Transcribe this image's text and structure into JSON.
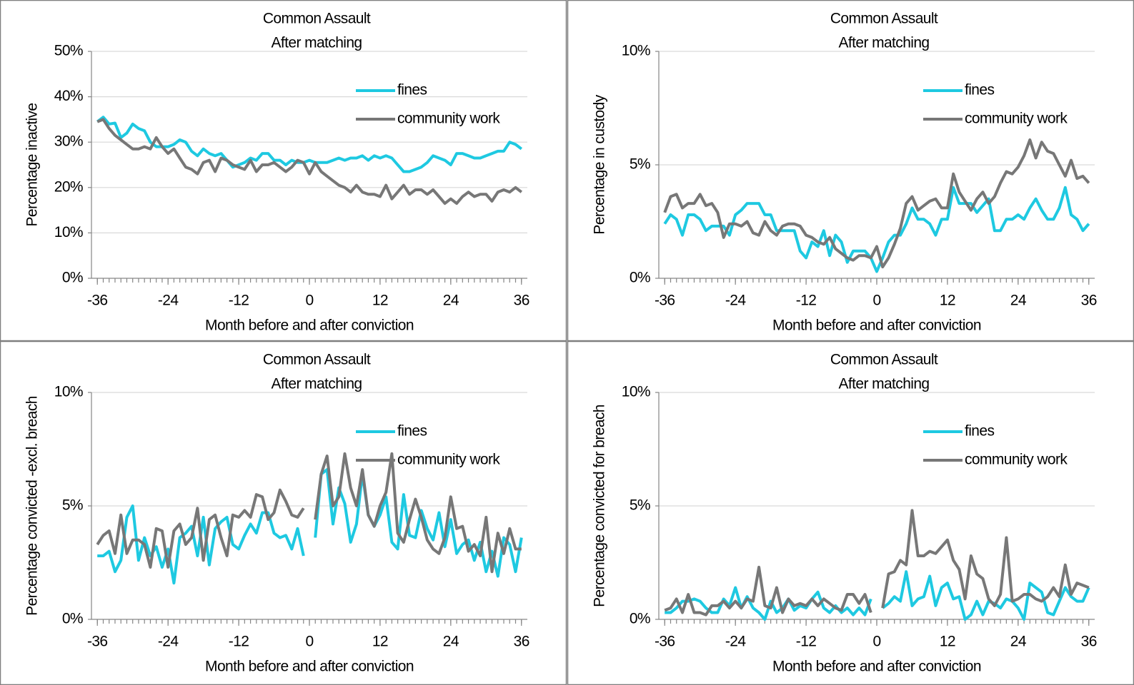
{
  "chart_data": [
    {
      "type": "line",
      "title": "Common Assault",
      "subtitle": "After matching",
      "y_label": "Percentage inactive",
      "x_label": "Month before and after conviction",
      "legend": "upper right",
      "x": [
        -36,
        -35,
        -34,
        -33,
        -32,
        -31,
        -30,
        -29,
        -28,
        -27,
        -26,
        -25,
        -24,
        -23,
        -22,
        -21,
        -20,
        -19,
        -18,
        -17,
        -16,
        -15,
        -14,
        -13,
        -12,
        -11,
        -10,
        -9,
        -8,
        -7,
        -6,
        -5,
        -4,
        -3,
        -2,
        -1,
        0,
        1,
        2,
        3,
        4,
        5,
        6,
        7,
        8,
        9,
        10,
        11,
        12,
        13,
        14,
        15,
        16,
        17,
        18,
        19,
        20,
        21,
        22,
        23,
        24,
        25,
        26,
        27,
        28,
        29,
        30,
        31,
        32,
        33,
        34,
        35,
        36
      ],
      "xlim": [
        -37,
        37
      ],
      "xticks": [
        -36,
        -24,
        -12,
        0,
        12,
        24,
        36
      ],
      "ylim": [
        0,
        50
      ],
      "yticks": [
        {
          "value": 0,
          "label": "0%"
        },
        {
          "value": 10,
          "label": "10%"
        },
        {
          "value": 20,
          "label": "20%"
        },
        {
          "value": 30,
          "label": "30%"
        },
        {
          "value": 40,
          "label": "40%"
        },
        {
          "value": 50,
          "label": "50%"
        }
      ],
      "grid": true,
      "series": [
        {
          "name": "fines",
          "color": "#1ec9e1",
          "values": [
            34.5,
            35.5,
            34,
            34.2,
            31,
            32,
            34,
            33,
            32.5,
            30,
            29,
            29,
            29,
            29.5,
            30.5,
            30,
            28,
            27,
            28.5,
            27.5,
            27,
            27.5,
            26,
            24.5,
            25,
            25.5,
            26.5,
            26,
            27.5,
            27.5,
            26,
            26,
            25,
            26,
            25.5,
            25.5,
            26,
            25.5,
            25.5,
            25.5,
            26,
            26.5,
            26,
            26.5,
            26.5,
            27,
            26,
            27,
            26.5,
            27,
            26.5,
            25,
            23.5,
            23.5,
            24,
            24.5,
            25.5,
            27,
            26.5,
            26,
            25,
            27.5,
            27.5,
            27,
            26.5,
            26.5,
            27,
            27.5,
            28,
            28,
            30,
            29.5,
            28.5
          ]
        },
        {
          "name": "community work",
          "color": "#777777",
          "values": [
            34.5,
            35,
            33,
            31.5,
            30.5,
            29.5,
            28.5,
            28.5,
            29,
            28.5,
            31,
            29,
            27.5,
            28.5,
            26.5,
            24.5,
            24,
            23,
            25.5,
            26,
            23.5,
            26.5,
            26,
            25,
            24.5,
            24,
            26,
            23.5,
            25,
            25,
            25.5,
            24.5,
            23.5,
            24.5,
            26,
            25.5,
            23,
            25.5,
            23.5,
            22.5,
            21.5,
            20.5,
            20,
            19,
            20.5,
            19,
            18.5,
            18.5,
            18,
            20.5,
            17.5,
            19,
            20.5,
            18.5,
            19.5,
            19.5,
            18.5,
            19.5,
            18,
            16.5,
            17.5,
            16.5,
            18,
            19,
            18,
            18.5,
            18.5,
            17,
            19,
            19.5,
            19,
            20,
            19
          ]
        }
      ]
    },
    {
      "type": "line",
      "title": "Common Assault",
      "subtitle": "After matching",
      "y_label": "Percentage in custody",
      "x_label": "Month before and after conviction",
      "legend": "upper right",
      "x": [
        -36,
        -35,
        -34,
        -33,
        -32,
        -31,
        -30,
        -29,
        -28,
        -27,
        -26,
        -25,
        -24,
        -23,
        -22,
        -21,
        -20,
        -19,
        -18,
        -17,
        -16,
        -15,
        -14,
        -13,
        -12,
        -11,
        -10,
        -9,
        -8,
        -7,
        -6,
        -5,
        -4,
        -3,
        -2,
        -1,
        0,
        1,
        2,
        3,
        4,
        5,
        6,
        7,
        8,
        9,
        10,
        11,
        12,
        13,
        14,
        15,
        16,
        17,
        18,
        19,
        20,
        21,
        22,
        23,
        24,
        25,
        26,
        27,
        28,
        29,
        30,
        31,
        32,
        33,
        34,
        35,
        36
      ],
      "xlim": [
        -37,
        37
      ],
      "xticks": [
        -36,
        -24,
        -12,
        0,
        12,
        24,
        36
      ],
      "ylim": [
        0,
        10
      ],
      "yticks": [
        {
          "value": 0,
          "label": "0%"
        },
        {
          "value": 5,
          "label": "5%"
        },
        {
          "value": 10,
          "label": "10%"
        }
      ],
      "grid": true,
      "series": [
        {
          "name": "fines",
          "color": "#1ec9e1",
          "values": [
            2.4,
            2.8,
            2.6,
            1.9,
            2.8,
            2.8,
            2.6,
            2.1,
            2.3,
            2.3,
            2.3,
            1.9,
            2.8,
            3,
            3.3,
            3.3,
            3.3,
            2.8,
            2.8,
            2.1,
            2.1,
            2.1,
            2.1,
            1.2,
            0.9,
            1.6,
            1.4,
            2.1,
            1,
            1.9,
            1.6,
            0.7,
            1.2,
            1.2,
            1.2,
            0.9,
            0.3,
            0.9,
            1.6,
            1.9,
            1.9,
            2.4,
            3.1,
            2.6,
            2.6,
            2.4,
            1.9,
            2.6,
            2.6,
            4,
            3.3,
            3.3,
            3.3,
            2.9,
            3.2,
            3.5,
            2.1,
            2.1,
            2.6,
            2.6,
            2.8,
            2.6,
            3.1,
            3.5,
            3,
            2.6,
            2.6,
            3.1,
            4,
            2.8,
            2.6,
            2.1,
            2.4
          ]
        },
        {
          "name": "community work",
          "color": "#777777",
          "values": [
            2.9,
            3.6,
            3.7,
            3.1,
            3.3,
            3.3,
            3.7,
            3.2,
            3.3,
            2.9,
            1.8,
            2.4,
            2.4,
            2.3,
            2.5,
            2,
            1.9,
            2.5,
            2.1,
            1.9,
            2.3,
            2.4,
            2.4,
            2.3,
            1.9,
            1.8,
            1.6,
            1.5,
            1.8,
            1.3,
            1.1,
            0.9,
            0.8,
            1,
            1,
            0.9,
            1.4,
            0.5,
            0.9,
            1.5,
            2.2,
            3.3,
            3.6,
            3,
            3.2,
            3.4,
            3.5,
            3.1,
            3.1,
            4.6,
            3.8,
            3.4,
            3,
            3.5,
            3.8,
            3.3,
            3.6,
            4.2,
            4.7,
            4.6,
            4.9,
            5.4,
            6.1,
            5.3,
            6,
            5.6,
            5.5,
            5,
            4.5,
            5.2,
            4.4,
            4.5,
            4.2
          ]
        }
      ]
    },
    {
      "type": "line",
      "title": "Common Assault",
      "subtitle": "After matching",
      "y_label": "Percentage convicted -excl. breach",
      "x_label": "Month before and after conviction",
      "legend": "upper right",
      "x": [
        -36,
        -35,
        -34,
        -33,
        -32,
        -31,
        -30,
        -29,
        -28,
        -27,
        -26,
        -25,
        -24,
        -23,
        -22,
        -21,
        -20,
        -19,
        -18,
        -17,
        -16,
        -15,
        -14,
        -13,
        -12,
        -11,
        -10,
        -9,
        -8,
        -7,
        -6,
        -5,
        -4,
        -3,
        -2,
        -1,
        0,
        1,
        2,
        3,
        4,
        5,
        6,
        7,
        8,
        9,
        10,
        11,
        12,
        13,
        14,
        15,
        16,
        17,
        18,
        19,
        20,
        21,
        22,
        23,
        24,
        25,
        26,
        27,
        28,
        29,
        30,
        31,
        32,
        33,
        34,
        35,
        36
      ],
      "xlim": [
        -37,
        37
      ],
      "xticks": [
        -36,
        -24,
        -12,
        0,
        12,
        24,
        36
      ],
      "ylim": [
        0,
        10
      ],
      "yticks": [
        {
          "value": 0,
          "label": "0%"
        },
        {
          "value": 5,
          "label": "5%"
        },
        {
          "value": 10,
          "label": "10%"
        }
      ],
      "grid": true,
      "series": [
        {
          "name": "fines",
          "color": "#1ec9e1",
          "values": [
            2.8,
            2.8,
            3,
            2.1,
            2.6,
            4.5,
            5,
            2.6,
            3.6,
            2.8,
            3.2,
            2.3,
            3.1,
            1.6,
            3.6,
            3.8,
            4.1,
            2.8,
            4.5,
            2.4,
            4,
            4.3,
            4.5,
            3.3,
            3.1,
            3.7,
            4.2,
            3.8,
            4.7,
            4.7,
            3.8,
            3.6,
            3.7,
            3.1,
            4,
            2.8,
            null,
            3.6,
            6.4,
            6.6,
            4.2,
            5.8,
            5.1,
            3.4,
            4.2,
            6.4,
            4.6,
            4.1,
            4.6,
            5.4,
            3.4,
            3.1,
            5.5,
            3.7,
            3.6,
            4.8,
            4,
            3.5,
            4.7,
            3.2,
            4.4,
            2.9,
            3.3,
            3.5,
            2.6,
            3.4,
            2.1,
            3,
            1.9,
            3.6,
            3.3,
            2.1,
            3.6
          ]
        },
        {
          "name": "community work",
          "color": "#777777",
          "values": [
            3.3,
            3.7,
            3.9,
            2.9,
            4.6,
            2.9,
            3.5,
            3.5,
            3.3,
            2.3,
            4,
            3.9,
            2.3,
            3.9,
            4.2,
            3.3,
            3.6,
            4.9,
            2.6,
            4.4,
            4.6,
            3.6,
            2.8,
            4.6,
            4.5,
            4.8,
            4.5,
            5.5,
            5.4,
            4.4,
            4.7,
            5.7,
            5.2,
            4.6,
            4.5,
            4.9,
            null,
            4.4,
            6.4,
            7.2,
            5,
            5.4,
            7.3,
            5.8,
            5,
            6.6,
            4.6,
            4.1,
            5,
            5.6,
            7.3,
            3.8,
            3.4,
            4.4,
            5.3,
            4.5,
            3.5,
            3.1,
            2.9,
            3.6,
            5.4,
            4,
            4.1,
            3,
            3.3,
            2.8,
            4.5,
            2.1,
            3.8,
            2.9,
            4,
            3.1,
            3.1
          ]
        }
      ]
    },
    {
      "type": "line",
      "title": "Common Assault",
      "subtitle": "After matching",
      "y_label": "Percentage convicted  for breach",
      "x_label": "Month before and  after conviction",
      "legend": "upper right",
      "x": [
        -36,
        -35,
        -34,
        -33,
        -32,
        -31,
        -30,
        -29,
        -28,
        -27,
        -26,
        -25,
        -24,
        -23,
        -22,
        -21,
        -20,
        -19,
        -18,
        -17,
        -16,
        -15,
        -14,
        -13,
        -12,
        -11,
        -10,
        -9,
        -8,
        -7,
        -6,
        -5,
        -4,
        -3,
        -2,
        -1,
        0,
        1,
        2,
        3,
        4,
        5,
        6,
        7,
        8,
        9,
        10,
        11,
        12,
        13,
        14,
        15,
        16,
        17,
        18,
        19,
        20,
        21,
        22,
        23,
        24,
        25,
        26,
        27,
        28,
        29,
        30,
        31,
        32,
        33,
        34,
        35,
        36
      ],
      "xlim": [
        -37,
        37
      ],
      "xticks": [
        -36,
        -24,
        -12,
        0,
        12,
        24,
        36
      ],
      "ylim": [
        0,
        10
      ],
      "yticks": [
        {
          "value": 0,
          "label": "0%"
        },
        {
          "value": 5,
          "label": "5%"
        },
        {
          "value": 10,
          "label": "10%"
        }
      ],
      "grid": true,
      "series": [
        {
          "name": "fines",
          "color": "#1ec9e1",
          "values": [
            0.3,
            0.3,
            0.5,
            0.8,
            0.8,
            0.9,
            0.8,
            0.5,
            0.3,
            0.3,
            0.9,
            0.6,
            1.4,
            0.5,
            1,
            0.5,
            0.3,
            0,
            0.8,
            0.3,
            0.5,
            0.9,
            0.4,
            0.6,
            0.5,
            0.9,
            1.2,
            0.5,
            0.3,
            0.6,
            0.3,
            0.5,
            0.2,
            0.5,
            0.2,
            0.9,
            null,
            0.5,
            0.7,
            1,
            0.8,
            2.1,
            0.6,
            0.9,
            1,
            1.9,
            0.6,
            1.4,
            1.6,
            0.9,
            1,
            0,
            0.2,
            0.8,
            0.2,
            0.8,
            0.7,
            0.5,
            0.9,
            0.8,
            0.5,
            0,
            1.6,
            1.4,
            1.2,
            0.3,
            0.2,
            0.8,
            1.4,
            1,
            0.8,
            0.8,
            1.4
          ]
        },
        {
          "name": "community work",
          "color": "#777777",
          "values": [
            0.4,
            0.5,
            0.9,
            0.3,
            1.1,
            0.3,
            0.3,
            0.2,
            0.6,
            0.6,
            0.8,
            0.5,
            0.8,
            0.5,
            0.9,
            0.8,
            2.3,
            0.6,
            0.5,
            1.4,
            0.3,
            0.9,
            0.6,
            0.7,
            0.6,
            0.9,
            0.6,
            0.9,
            0.7,
            0.5,
            0.4,
            1.1,
            1.1,
            0.7,
            1.1,
            0.3,
            null,
            0.5,
            2,
            2.1,
            2.6,
            2.4,
            4.8,
            2.8,
            2.8,
            3,
            2.9,
            3.2,
            3.5,
            2.6,
            2.2,
            0.9,
            2.8,
            2,
            1.8,
            0.9,
            0.6,
            1.1,
            3.6,
            0.8,
            0.9,
            1.1,
            1.1,
            0.9,
            0.8,
            1,
            1.4,
            1,
            2.4,
            1.1,
            1.6,
            1.5,
            1.4
          ]
        }
      ]
    }
  ]
}
